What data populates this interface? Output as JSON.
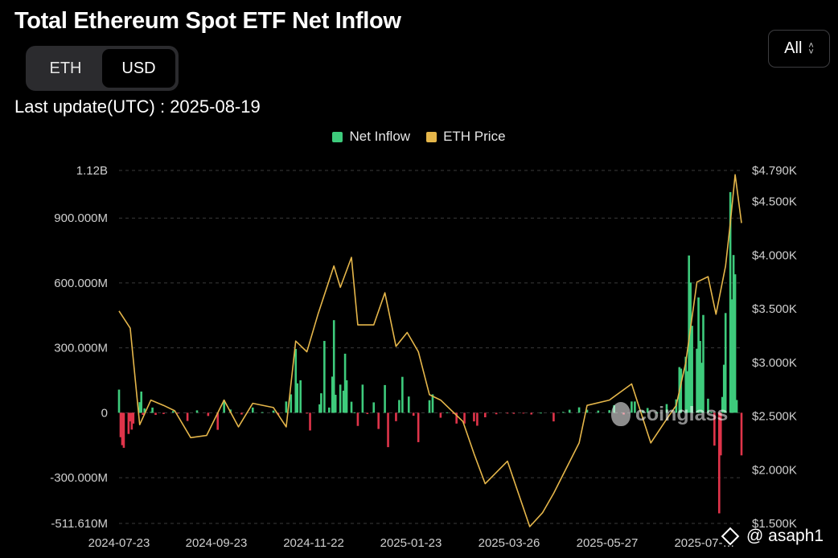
{
  "header": {
    "title": "Total Ethereum Spot ETF Net Inflow",
    "unit_tabs": [
      "ETH",
      "USD"
    ],
    "active_unit": "USD",
    "range_label": "All",
    "last_update": "Last update(UTC) : 2025-08-19"
  },
  "legend": [
    {
      "label": "Net Inflow",
      "color": "#3ecb7c"
    },
    {
      "label": "ETH Price",
      "color": "#e5b64a"
    }
  ],
  "watermark": "coinglass",
  "credit": "@ asaph1",
  "colors": {
    "positive": "#3ecb7c",
    "negative": "#e0344a",
    "price": "#e5b64a",
    "grid": "#3a3a3a"
  },
  "chart_data": {
    "type": "bar+line",
    "x_tick_labels": [
      "2024-07-23",
      "2024-09-23",
      "2024-11-22",
      "2025-01-23",
      "2025-03-26",
      "2025-05-27",
      "2025-07-…"
    ],
    "y_left_ticks": [
      "1.12B",
      "900.000M",
      "600.000M",
      "300.000M",
      "0",
      "-300.000M",
      "-511.610M"
    ],
    "y_left_values": [
      1120,
      900,
      600,
      300,
      0,
      -300,
      -511.61
    ],
    "y_left_range_musd": [
      -511.61,
      1120
    ],
    "y_right_ticks": [
      "$4.790K",
      "$4.500K",
      "$4.000K",
      "$3.500K",
      "$3.000K",
      "$2.500K",
      "$2.000K",
      "$1.500K"
    ],
    "y_right_values": [
      4790,
      4500,
      4000,
      3500,
      3000,
      2500,
      2000,
      1500
    ],
    "series": [
      {
        "name": "Net Inflow",
        "unit": "M USD",
        "points": [
          [
            "2024-07-23",
            107
          ],
          [
            "2024-07-24",
            -113
          ],
          [
            "2024-07-25",
            -150
          ],
          [
            "2024-07-26",
            -162
          ],
          [
            "2024-07-29",
            -98
          ],
          [
            "2024-07-30",
            -40
          ],
          [
            "2024-07-31",
            -78
          ],
          [
            "2024-08-01",
            -50
          ],
          [
            "2024-08-05",
            49
          ],
          [
            "2024-08-06",
            98
          ],
          [
            "2024-08-07",
            -10
          ],
          [
            "2024-08-08",
            20
          ],
          [
            "2024-08-12",
            4
          ],
          [
            "2024-08-13",
            24
          ],
          [
            "2024-08-15",
            -10
          ],
          [
            "2024-08-20",
            -6
          ],
          [
            "2024-08-26",
            8
          ],
          [
            "2024-08-29",
            -1
          ],
          [
            "2024-09-04",
            -38
          ],
          [
            "2024-09-10",
            11
          ],
          [
            "2024-09-17",
            -15
          ],
          [
            "2024-09-23",
            -79
          ],
          [
            "2024-09-27",
            58
          ],
          [
            "2024-10-01",
            15
          ],
          [
            "2024-10-08",
            -8
          ],
          [
            "2024-10-15",
            24
          ],
          [
            "2024-10-21",
            3
          ],
          [
            "2024-10-28",
            10
          ],
          [
            "2024-10-31",
            -10
          ],
          [
            "2024-11-05",
            52
          ],
          [
            "2024-11-08",
            85
          ],
          [
            "2024-11-11",
            295
          ],
          [
            "2024-11-12",
            136
          ],
          [
            "2024-11-14",
            150
          ],
          [
            "2024-11-18",
            -4
          ],
          [
            "2024-11-20",
            -82
          ],
          [
            "2024-11-26",
            39
          ],
          [
            "2024-11-27",
            90
          ],
          [
            "2024-11-29",
            332
          ],
          [
            "2024-12-02",
            24
          ],
          [
            "2024-12-04",
            167
          ],
          [
            "2024-12-05",
            428
          ],
          [
            "2024-12-06",
            83
          ],
          [
            "2024-12-09",
            130
          ],
          [
            "2024-12-11",
            102
          ],
          [
            "2024-12-12",
            273
          ],
          [
            "2024-12-13",
            150
          ],
          [
            "2024-12-16",
            51
          ],
          [
            "2024-12-18",
            2
          ],
          [
            "2024-12-20",
            -61
          ],
          [
            "2024-12-23",
            130
          ],
          [
            "2024-12-26",
            -6
          ],
          [
            "2024-12-30",
            48
          ],
          [
            "2025-01-02",
            -75
          ],
          [
            "2025-01-06",
            128
          ],
          [
            "2025-01-08",
            -159
          ],
          [
            "2025-01-13",
            -39
          ],
          [
            "2025-01-15",
            59
          ],
          [
            "2025-01-17",
            166
          ],
          [
            "2025-01-21",
            75
          ],
          [
            "2025-01-24",
            -14
          ],
          [
            "2025-01-27",
            -136
          ],
          [
            "2025-02-03",
            58
          ],
          [
            "2025-02-05",
            85
          ],
          [
            "2025-02-10",
            -23
          ],
          [
            "2025-02-14",
            2
          ],
          [
            "2025-02-18",
            -5
          ],
          [
            "2025-02-20",
            -50
          ],
          [
            "2025-02-25",
            -50
          ],
          [
            "2025-03-03",
            -40
          ],
          [
            "2025-03-05",
            -60
          ],
          [
            "2025-03-10",
            -21
          ],
          [
            "2025-03-17",
            -7
          ],
          [
            "2025-03-24",
            -1
          ],
          [
            "2025-03-28",
            -5
          ],
          [
            "2025-04-03",
            -3
          ],
          [
            "2025-04-08",
            -8
          ],
          [
            "2025-04-14",
            0.5
          ],
          [
            "2025-04-22",
            -40
          ],
          [
            "2025-04-28",
            4
          ],
          [
            "2025-05-02",
            14
          ],
          [
            "2025-05-08",
            25
          ],
          [
            "2025-05-13",
            14
          ],
          [
            "2025-05-20",
            10
          ],
          [
            "2025-05-27",
            12
          ],
          [
            "2025-05-30",
            35
          ],
          [
            "2025-06-05",
            -8
          ],
          [
            "2025-06-10",
            52
          ],
          [
            "2025-06-12",
            52
          ],
          [
            "2025-06-17",
            10
          ],
          [
            "2025-06-20",
            22
          ],
          [
            "2025-06-26",
            2
          ],
          [
            "2025-07-02",
            40
          ],
          [
            "2025-07-08",
            62
          ],
          [
            "2025-07-10",
            211
          ],
          [
            "2025-07-11",
            204
          ],
          [
            "2025-07-14",
            259
          ],
          [
            "2025-07-15",
            192
          ],
          [
            "2025-07-16",
            727
          ],
          [
            "2025-07-17",
            602
          ],
          [
            "2025-07-18",
            402
          ],
          [
            "2025-07-21",
            296
          ],
          [
            "2025-07-22",
            533
          ],
          [
            "2025-07-23",
            332
          ],
          [
            "2025-07-24",
            231
          ],
          [
            "2025-07-25",
            452
          ],
          [
            "2025-07-28",
            65
          ],
          [
            "2025-07-30",
            5
          ],
          [
            "2025-08-01",
            -152
          ],
          [
            "2025-08-04",
            -465
          ],
          [
            "2025-08-05",
            -197
          ],
          [
            "2025-08-06",
            73
          ],
          [
            "2025-08-07",
            222
          ],
          [
            "2025-08-08",
            461
          ],
          [
            "2025-08-11",
            1020
          ],
          [
            "2025-08-12",
            524
          ],
          [
            "2025-08-13",
            729
          ],
          [
            "2025-08-14",
            640
          ],
          [
            "2025-08-15",
            59
          ],
          [
            "2025-08-18",
            -197
          ]
        ]
      },
      {
        "name": "ETH Price",
        "unit": "USD",
        "points": [
          [
            "2024-07-23",
            3480
          ],
          [
            "2024-07-30",
            3320
          ],
          [
            "2024-08-05",
            2420
          ],
          [
            "2024-08-12",
            2650
          ],
          [
            "2024-08-20",
            2600
          ],
          [
            "2024-08-27",
            2550
          ],
          [
            "2024-09-06",
            2300
          ],
          [
            "2024-09-16",
            2320
          ],
          [
            "2024-09-27",
            2650
          ],
          [
            "2024-10-06",
            2400
          ],
          [
            "2024-10-15",
            2620
          ],
          [
            "2024-10-28",
            2580
          ],
          [
            "2024-11-05",
            2400
          ],
          [
            "2024-11-11",
            3200
          ],
          [
            "2024-11-18",
            3100
          ],
          [
            "2024-11-25",
            3450
          ],
          [
            "2024-12-05",
            3900
          ],
          [
            "2024-12-09",
            3700
          ],
          [
            "2024-12-16",
            3980
          ],
          [
            "2024-12-20",
            3350
          ],
          [
            "2024-12-30",
            3350
          ],
          [
            "2025-01-06",
            3650
          ],
          [
            "2025-01-13",
            3150
          ],
          [
            "2025-01-20",
            3280
          ],
          [
            "2025-01-27",
            3100
          ],
          [
            "2025-02-03",
            2700
          ],
          [
            "2025-02-10",
            2650
          ],
          [
            "2025-02-24",
            2450
          ],
          [
            "2025-03-03",
            2150
          ],
          [
            "2025-03-10",
            1870
          ],
          [
            "2025-03-24",
            2080
          ],
          [
            "2025-04-07",
            1470
          ],
          [
            "2025-04-15",
            1600
          ],
          [
            "2025-04-22",
            1780
          ],
          [
            "2025-05-08",
            2250
          ],
          [
            "2025-05-13",
            2600
          ],
          [
            "2025-05-27",
            2650
          ],
          [
            "2025-06-10",
            2800
          ],
          [
            "2025-06-22",
            2250
          ],
          [
            "2025-07-01",
            2450
          ],
          [
            "2025-07-08",
            2600
          ],
          [
            "2025-07-14",
            3000
          ],
          [
            "2025-07-21",
            3750
          ],
          [
            "2025-07-28",
            3800
          ],
          [
            "2025-08-02",
            3450
          ],
          [
            "2025-08-08",
            3900
          ],
          [
            "2025-08-11",
            4300
          ],
          [
            "2025-08-14",
            4750
          ],
          [
            "2025-08-18",
            4300
          ]
        ]
      }
    ],
    "grid": true,
    "legend_position": "top-center"
  }
}
